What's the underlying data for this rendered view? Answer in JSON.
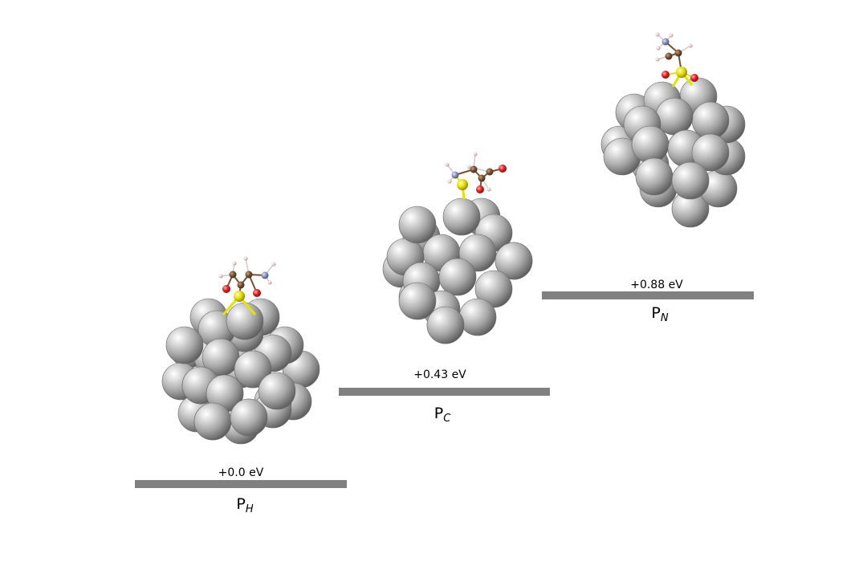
{
  "states": [
    {
      "id": "ph",
      "energy_value": 0.0,
      "energy_label": "+0.0 eV",
      "state_main": "P",
      "state_sub": "H"
    },
    {
      "id": "pc",
      "energy_value": 0.43,
      "energy_label": "+0.43 eV",
      "state_main": "P",
      "state_sub": "C"
    },
    {
      "id": "pn",
      "energy_value": 0.88,
      "energy_label": "+0.88 eV",
      "state_main": "P",
      "state_sub": "N"
    }
  ],
  "colors": {
    "level_bar": "#808080",
    "metal_atom": "#9a9a9a",
    "sulfur_atom": "#e8e000",
    "oxygen_atom": "#e02020",
    "carbon_atom": "#7a5030",
    "nitrogen_atom": "#8a90b8",
    "hydrogen_atom": "#e8c8c8"
  },
  "icons": {
    "cluster": "metal-nanocluster-icon",
    "adsorbate": "adsorbed-molecule-icon"
  }
}
